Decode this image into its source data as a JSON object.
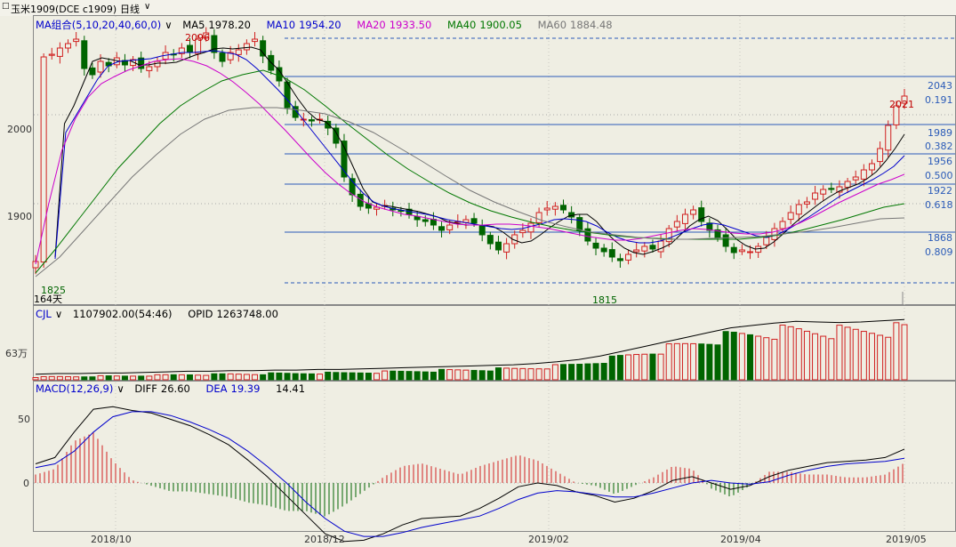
{
  "window": {
    "title": "玉米1909(DCE c1909)",
    "period": "日线"
  },
  "colors": {
    "up": "#d02020",
    "down": "#006400",
    "ma5": "#000000",
    "ma10": "#0000cc",
    "ma20": "#cc00cc",
    "ma40": "#007700",
    "ma60": "#777777",
    "fib": "#2b5bb8"
  },
  "main": {
    "indicator": "MA组合(5,10,20,40,60,0)",
    "ma": [
      {
        "label": "MA5",
        "value": "1978.20"
      },
      {
        "label": "MA10",
        "value": "1954.20"
      },
      {
        "label": "MA20",
        "value": "1933.50"
      },
      {
        "label": "MA40",
        "value": "1900.05"
      },
      {
        "label": "MA60",
        "value": "1884.48"
      }
    ],
    "y_ticks": [
      "2000",
      "1900"
    ],
    "high_label": "2096",
    "low_label": "1815",
    "start_low_label": "1825",
    "last_high_label": "2021",
    "days_label": "164天",
    "fib_levels": [
      {
        "price": "2043",
        "ratio": "0.191"
      },
      {
        "price": "1989",
        "ratio": "0.382"
      },
      {
        "price": "1956",
        "ratio": "0.500"
      },
      {
        "price": "1922",
        "ratio": "0.618"
      },
      {
        "price": "1868",
        "ratio": "0.809"
      }
    ]
  },
  "volume": {
    "label": "CJL",
    "value": "1107902.00(54:46)",
    "opid_label": "OPID",
    "opid": "1263748.00",
    "y_tick": "63万"
  },
  "macd": {
    "label": "MACD(12,26,9)",
    "diff_label": "DIFF",
    "diff": "26.60",
    "dea_label": "DEA",
    "dea": "19.39",
    "macd_value": "14.41",
    "y_ticks": [
      "50",
      "0"
    ]
  },
  "x_ticks": [
    "2018/10",
    "2018/12",
    "2019/02",
    "2019/04",
    "2019/05"
  ],
  "chart_data": {
    "type": "candlestick",
    "title": "玉米1909(DCE c1909)",
    "xlabel": "",
    "ylabel": "",
    "ylim": [
      1787,
      2111
    ],
    "x_ticks": [
      "2018/10",
      "2018/12",
      "2019/02",
      "2019/04",
      "2019/05"
    ],
    "series": [
      {
        "name": "price",
        "values": [
          1835,
          2065,
          2068,
          2075,
          2080,
          2085,
          2052,
          2045,
          2060,
          2055,
          2064,
          2056,
          2062,
          2052,
          2054,
          2060,
          2070,
          2068,
          2075,
          2070,
          2085,
          2092,
          2070,
          2060,
          2070,
          2073,
          2080,
          2085,
          2066,
          2050,
          2038,
          2008,
          1997,
          1995,
          1993,
          1995,
          1985,
          1968,
          1930,
          1910,
          1897,
          1895,
          1896,
          1898,
          1893,
          1892,
          1888,
          1882,
          1880,
          1876,
          1870,
          1876,
          1880,
          1882,
          1878,
          1865,
          1855,
          1848,
          1855,
          1865,
          1870,
          1878,
          1890,
          1895,
          1897,
          1893,
          1885,
          1870,
          1858,
          1850,
          1846,
          1840,
          1836,
          1843,
          1848,
          1852,
          1849,
          1858,
          1872,
          1880,
          1888,
          1893,
          1880,
          1870,
          1862,
          1852,
          1845,
          1848,
          1846,
          1852,
          1862,
          1872,
          1880,
          1890,
          1899,
          1902,
          1912,
          1916,
          1916,
          1919,
          1925,
          1930,
          1938,
          1945,
          1962,
          1988,
          2010,
          2021
        ]
      },
      {
        "name": "MA5",
        "values": [
          1840,
          1990,
          2010,
          2035,
          2060,
          2064,
          2062,
          2060,
          2061,
          2056,
          2056,
          2058,
          2058,
          2059,
          2063,
          2067,
          2070,
          2074,
          2075,
          2074,
          2075,
          2076,
          2073,
          2060,
          2050,
          2034,
          2018,
          2004,
          1995,
          1992,
          1982,
          1963,
          1940,
          1917,
          1902,
          1898,
          1897,
          1895,
          1893,
          1891,
          1888,
          1885,
          1880,
          1878,
          1876,
          1876,
          1876,
          1874,
          1868,
          1860,
          1856,
          1858,
          1865,
          1873,
          1880,
          1886,
          1888,
          1888,
          1880,
          1868,
          1858,
          1850,
          1845,
          1843,
          1846,
          1850,
          1855,
          1865,
          1875,
          1882,
          1886,
          1881,
          1871,
          1860,
          1853,
          1849,
          1850,
          1857,
          1866,
          1876,
          1885,
          1893,
          1901,
          1908,
          1914,
          1918,
          1922,
          1928,
          1936,
          1948,
          1962,
          1978
        ]
      },
      {
        "name": "MA10",
        "values": [
          1838,
          1980,
          2000,
          2020,
          2040,
          2055,
          2060,
          2061,
          2062,
          2063,
          2066,
          2068,
          2070,
          2070,
          2071,
          2072,
          2070,
          2068,
          2062,
          2052,
          2040,
          2028,
          2015,
          2000,
          1985,
          1970,
          1955,
          1940,
          1925,
          1912,
          1902,
          1897,
          1894,
          1892,
          1890,
          1888,
          1885,
          1882,
          1880,
          1878,
          1876,
          1874,
          1872,
          1871,
          1872,
          1875,
          1878,
          1882,
          1883,
          1882,
          1880,
          1875,
          1868,
          1862,
          1858,
          1856,
          1856,
          1858,
          1862,
          1867,
          1872,
          1876,
          1878,
          1876,
          1872,
          1868,
          1864,
          1862,
          1865,
          1871,
          1878,
          1885,
          1893,
          1901,
          1909,
          1915,
          1921,
          1927,
          1934,
          1942,
          1954
        ]
      },
      {
        "name": "MA20",
        "values": [
          1832,
          1900,
          1960,
          1995,
          2020,
          2035,
          2043,
          2050,
          2055,
          2060,
          2062,
          2063,
          2060,
          2055,
          2047,
          2037,
          2025,
          2012,
          1997,
          1982,
          1966,
          1950,
          1935,
          1922,
          1911,
          1902,
          1896,
          1892,
          1888,
          1886,
          1883,
          1880,
          1877,
          1876,
          1876,
          1877,
          1877,
          1876,
          1874,
          1872,
          1869,
          1866,
          1863,
          1861,
          1859,
          1859,
          1861,
          1864,
          1867,
          1870,
          1872,
          1871,
          1869,
          1867,
          1866,
          1866,
          1868,
          1872,
          1878,
          1885,
          1893,
          1901,
          1908,
          1915,
          1922,
          1927,
          1933
        ]
      },
      {
        "name": "MA40",
        "values": [
          1822,
          1850,
          1880,
          1910,
          1940,
          1965,
          1990,
          2010,
          2025,
          2038,
          2045,
          2050,
          2042,
          2028,
          2010,
          1991,
          1973,
          1955,
          1939,
          1925,
          1912,
          1901,
          1892,
          1885,
          1879,
          1874,
          1870,
          1867,
          1864,
          1862,
          1861,
          1860,
          1860,
          1860,
          1860,
          1862,
          1865,
          1870,
          1876,
          1882,
          1889,
          1896,
          1900
        ]
      },
      {
        "name": "MA60",
        "values": [
          1818,
          1840,
          1870,
          1900,
          1930,
          1955,
          1978,
          1995,
          2005,
          2008,
          2008,
          2005,
          2001,
          1992,
          1980,
          1964,
          1948,
          1931,
          1915,
          1902,
          1891,
          1881,
          1874,
          1868,
          1865,
          1862,
          1860,
          1860,
          1861,
          1862,
          1863,
          1866,
          1869,
          1873,
          1878,
          1883,
          1884
        ]
      }
    ],
    "volume_level": [
      0.05,
      0.06,
      0.06,
      0.07,
      0.07,
      0.08,
      0.09,
      0.1,
      0.1,
      0.11,
      0.11,
      0.12,
      0.12,
      0.13,
      0.13,
      0.14,
      0.15,
      0.16,
      0.17,
      0.18,
      0.19,
      0.2,
      0.21,
      0.23,
      0.26,
      0.3,
      0.36,
      0.44,
      0.52,
      0.6,
      0.68,
      0.76,
      0.84,
      0.88,
      0.92,
      0.95,
      0.94,
      0.93,
      0.94,
      0.96,
      0.98
    ],
    "macd": {
      "diff": [
        15,
        20,
        40,
        58,
        60,
        57,
        55,
        50,
        45,
        38,
        30,
        18,
        5,
        -10,
        -25,
        -40,
        -46,
        -45,
        -40,
        -33,
        -28,
        -27,
        -26,
        -20,
        -12,
        -3,
        0,
        -2,
        -7,
        -10,
        -15,
        -12,
        -6,
        2,
        5,
        0,
        -5,
        -2,
        5,
        10,
        13,
        16,
        17,
        18,
        20,
        26.6
      ],
      "dea": [
        12,
        15,
        25,
        40,
        52,
        56,
        56,
        53,
        48,
        42,
        35,
        25,
        13,
        0,
        -15,
        -28,
        -38,
        -42,
        -42,
        -39,
        -35,
        -32,
        -29,
        -26,
        -20,
        -13,
        -8,
        -6,
        -7,
        -9,
        -11,
        -11,
        -8,
        -4,
        0,
        2,
        0,
        -1,
        1,
        6,
        10,
        13,
        15,
        16,
        17,
        19.39
      ],
      "hist_peak": 54,
      "hist_trough": -38,
      "latest_hist": 14.41
    }
  }
}
